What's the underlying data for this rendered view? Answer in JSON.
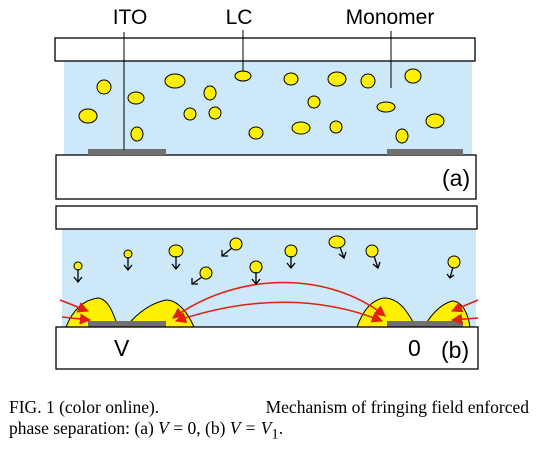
{
  "labels": {
    "ito": "ITO",
    "lc": "LC",
    "monomer": "Monomer",
    "panel_a": "(a)",
    "panel_b": "(b)",
    "voltage_left": "V",
    "voltage_right": "0"
  },
  "caption": {
    "line1_a": "FIG. 1 (color online).",
    "line1_b": "Mechanism of fringing field enforced",
    "line2_prefix": "phase separation: (a) ",
    "line2_mid": ", (b) ",
    "line2_end": ".",
    "var_v": "V",
    "eq_zero": " = 0",
    "eq_v1": " = V",
    "sub_1": "1"
  },
  "colors": {
    "monomer_fill": "#cde8f8",
    "lc_droplet": "#ffef00",
    "electrode": "#707070",
    "field_line": "#e02010"
  }
}
